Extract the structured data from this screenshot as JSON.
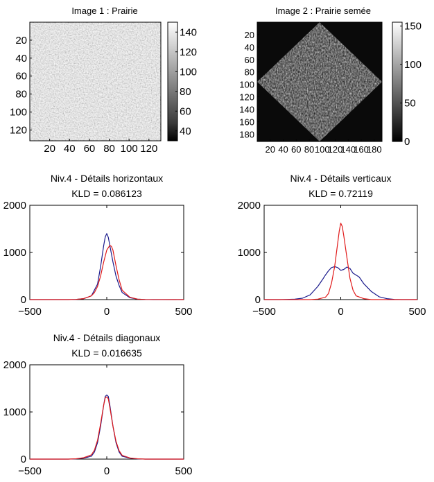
{
  "images": [
    {
      "title": "Image 1 : Prairie",
      "yticks": [
        "20",
        "40",
        "60",
        "80",
        "100",
        "120"
      ],
      "xticks": [
        "20",
        "40",
        "60",
        "80",
        "100",
        "120"
      ],
      "colorbar_ticks": [
        "140",
        "120",
        "100",
        "80",
        "60",
        "40"
      ],
      "colorbar_range": [
        30,
        150
      ]
    },
    {
      "title": "Image 2 : Prairie semée",
      "yticks": [
        "20",
        "40",
        "60",
        "80",
        "100",
        "120",
        "140",
        "160",
        "180"
      ],
      "xticks": [
        "20",
        "40",
        "60",
        "80",
        "100",
        "120",
        "140",
        "160",
        "180"
      ],
      "colorbar_ticks": [
        "150",
        "100",
        "50",
        "0"
      ],
      "colorbar_range": [
        0,
        155
      ]
    }
  ],
  "chart_data": [
    {
      "type": "line",
      "title": "Niv.4 - Détails horizontaux",
      "subtitle": "KLD = 0.086123",
      "xlim": [
        -500,
        500
      ],
      "ylim": [
        0,
        2000
      ],
      "xticks": [
        "−500",
        "0",
        "500"
      ],
      "yticks": [
        "0",
        "1000",
        "2000"
      ],
      "series": [
        {
          "color": "#1a1a8c",
          "x": [
            -500,
            -250,
            -200,
            -150,
            -100,
            -60,
            -40,
            -20,
            -10,
            0,
            10,
            20,
            40,
            60,
            80,
            100,
            150,
            200,
            250,
            300,
            500
          ],
          "y": [
            0,
            0,
            5,
            20,
            80,
            330,
            700,
            1150,
            1330,
            1400,
            1320,
            1150,
            800,
            500,
            300,
            150,
            40,
            10,
            3,
            0,
            0
          ]
        },
        {
          "color": "#e01818",
          "x": [
            -500,
            -250,
            -200,
            -150,
            -100,
            -80,
            -60,
            -40,
            -20,
            0,
            10,
            20,
            30,
            40,
            60,
            80,
            100,
            150,
            200,
            250,
            500
          ],
          "y": [
            0,
            0,
            5,
            20,
            80,
            150,
            280,
            500,
            800,
            1050,
            1100,
            1150,
            1130,
            1050,
            720,
            420,
            200,
            50,
            10,
            3,
            0
          ]
        }
      ]
    },
    {
      "type": "line",
      "title": "Niv.4 - Détails verticaux",
      "subtitle": "KLD = 0.72119",
      "xlim": [
        -500,
        500
      ],
      "ylim": [
        0,
        2000
      ],
      "xticks": [
        "−500",
        "0",
        "500"
      ],
      "yticks": [
        "0",
        "1000",
        "2000"
      ],
      "series": [
        {
          "color": "#1a1a8c",
          "x": [
            -500,
            -400,
            -350,
            -300,
            -250,
            -200,
            -150,
            -120,
            -100,
            -80,
            -60,
            -40,
            -20,
            0,
            20,
            40,
            60,
            80,
            100,
            120,
            150,
            200,
            250,
            300,
            350,
            400,
            500
          ],
          "y": [
            0,
            0,
            5,
            10,
            30,
            100,
            280,
            420,
            520,
            610,
            680,
            700,
            680,
            620,
            640,
            690,
            660,
            560,
            520,
            480,
            340,
            170,
            60,
            20,
            5,
            0,
            0
          ]
        },
        {
          "color": "#e01818",
          "x": [
            -500,
            -200,
            -150,
            -100,
            -80,
            -60,
            -40,
            -20,
            -10,
            0,
            10,
            20,
            40,
            60,
            80,
            100,
            150,
            200,
            500
          ],
          "y": [
            0,
            0,
            10,
            50,
            130,
            350,
            700,
            1200,
            1450,
            1620,
            1550,
            1350,
            900,
            450,
            200,
            80,
            20,
            0,
            0
          ]
        }
      ]
    },
    {
      "type": "line",
      "title": "Niv.4 - Détails diagonaux",
      "subtitle": "KLD = 0.016635",
      "xlim": [
        -500,
        500
      ],
      "ylim": [
        0,
        2000
      ],
      "xticks": [
        "−500",
        "0",
        "500"
      ],
      "yticks": [
        "0",
        "1000",
        "2000"
      ],
      "series": [
        {
          "color": "#1a1a8c",
          "x": [
            -500,
            -250,
            -200,
            -150,
            -100,
            -80,
            -60,
            -40,
            -20,
            -10,
            0,
            10,
            20,
            40,
            60,
            80,
            100,
            150,
            200,
            250,
            500
          ],
          "y": [
            0,
            0,
            5,
            20,
            60,
            150,
            350,
            700,
            1150,
            1330,
            1360,
            1330,
            1150,
            700,
            350,
            150,
            60,
            20,
            5,
            0,
            0
          ]
        },
        {
          "color": "#e01818",
          "x": [
            -500,
            -250,
            -200,
            -150,
            -100,
            -80,
            -60,
            -40,
            -20,
            -10,
            0,
            10,
            20,
            40,
            60,
            80,
            100,
            150,
            200,
            250,
            500
          ],
          "y": [
            0,
            0,
            8,
            30,
            90,
            190,
            400,
            750,
            1150,
            1300,
            1320,
            1280,
            1100,
            700,
            380,
            180,
            80,
            25,
            8,
            0,
            0
          ]
        }
      ]
    }
  ]
}
